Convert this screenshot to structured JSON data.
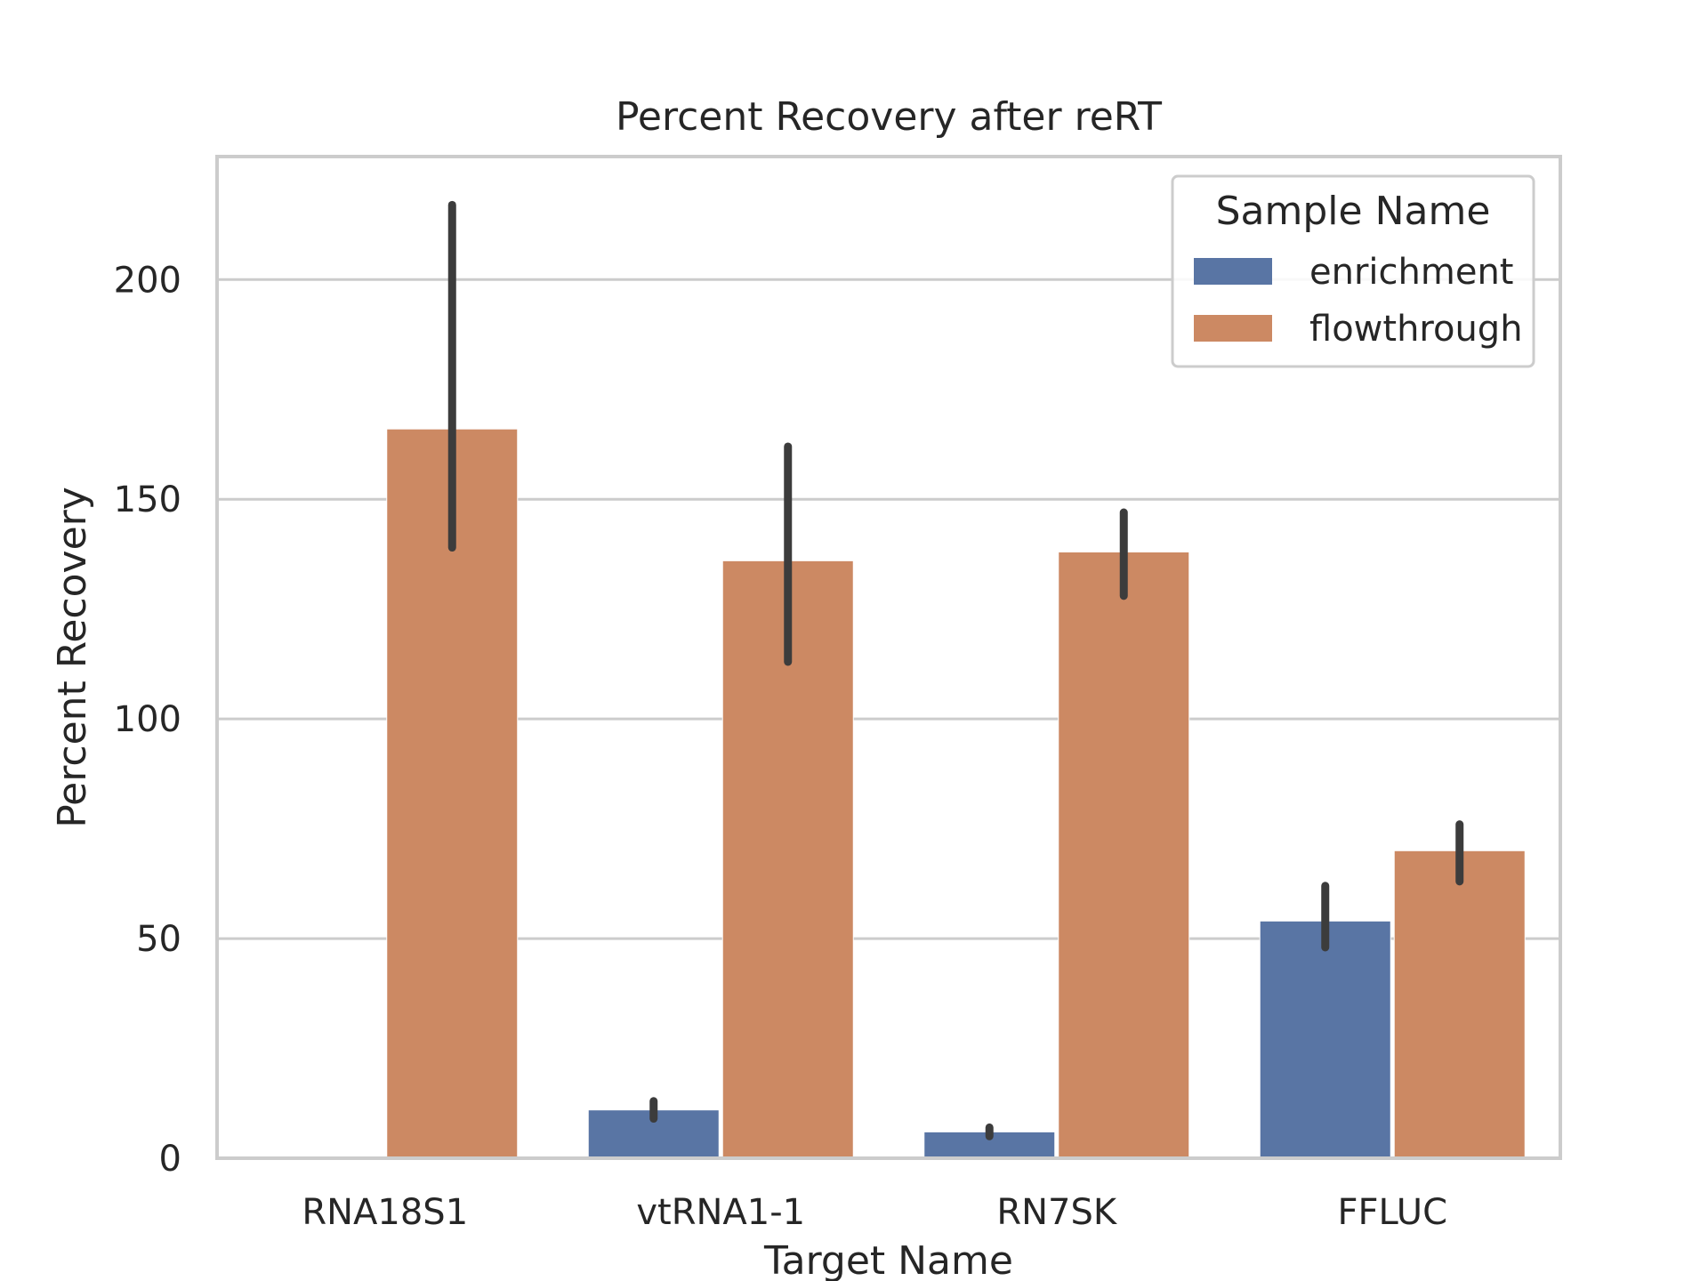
{
  "chart_data": {
    "type": "bar",
    "title": "Percent Recovery after reRT",
    "xlabel": "Target Name",
    "ylabel": "Percent Recovery",
    "categories": [
      "RNA18S1",
      "vtRNA1-1",
      "RN7SK",
      "FFLUC"
    ],
    "ylim": [
      0,
      228
    ],
    "yticks": [
      0,
      50,
      100,
      150,
      200
    ],
    "grid": true,
    "legend": {
      "title": "Sample Name",
      "placement": "top-right"
    },
    "series": [
      {
        "name": "enrichment",
        "color": "#5975a4",
        "values": [
          0,
          11,
          6,
          54
        ],
        "error_low": [
          0,
          9,
          5,
          48
        ],
        "error_high": [
          0,
          13,
          7,
          62
        ]
      },
      {
        "name": "flowthrough",
        "color": "#cc8963",
        "values": [
          166,
          136,
          138,
          70
        ],
        "error_low": [
          139,
          113,
          128,
          63
        ],
        "error_high": [
          217,
          162,
          147,
          76
        ]
      }
    ],
    "error_bar_color": "#3c3c3c"
  }
}
